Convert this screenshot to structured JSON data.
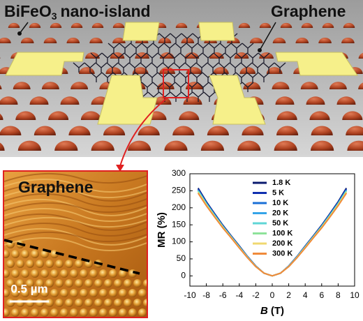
{
  "schematic": {
    "label_island": {
      "main": "BiFeO",
      "sub": "3",
      "rest": "nano-island"
    },
    "label_graphene": "Graphene"
  },
  "afm": {
    "label": "Graphene",
    "scale_bar": "0.5 µm"
  },
  "chart_data": {
    "type": "line",
    "y_label": "MR (%)",
    "x_label_symbol": "B",
    "x_label_unit": "(T)",
    "x": [
      -9,
      -8,
      -7,
      -6,
      -5,
      -4,
      -3,
      -2,
      -1,
      0,
      1,
      2,
      3,
      4,
      5,
      6,
      7,
      8,
      9
    ],
    "xlim": [
      -10,
      10
    ],
    "xticks": [
      -10,
      -8,
      -6,
      -4,
      -2,
      0,
      2,
      4,
      6,
      8,
      10
    ],
    "ylim": [
      -30,
      300
    ],
    "yticks": [
      0,
      50,
      100,
      150,
      200,
      250,
      300
    ],
    "series": [
      {
        "name": "1.8 K",
        "color": "#0a1a6e",
        "values": [
          258,
          218,
          183,
          149,
          118,
          88,
          57,
          29,
          8,
          0,
          8,
          29,
          57,
          88,
          118,
          149,
          183,
          218,
          258
        ]
      },
      {
        "name": "5 K",
        "color": "#1030b0",
        "values": [
          255,
          216,
          182,
          148,
          117,
          87,
          56,
          29,
          8,
          0,
          8,
          29,
          56,
          87,
          117,
          148,
          182,
          216,
          255
        ]
      },
      {
        "name": "10 K",
        "color": "#1a6fd6",
        "values": [
          253,
          214,
          180,
          146,
          116,
          86,
          56,
          28,
          8,
          0,
          8,
          28,
          56,
          86,
          116,
          146,
          180,
          214,
          253
        ]
      },
      {
        "name": "20 K",
        "color": "#35a4e8",
        "values": [
          250,
          212,
          178,
          145,
          115,
          85,
          55,
          28,
          8,
          0,
          8,
          28,
          55,
          85,
          115,
          145,
          178,
          212,
          250
        ]
      },
      {
        "name": "50 K",
        "color": "#5fd6d6",
        "values": [
          250,
          212,
          178,
          145,
          115,
          85,
          55,
          28,
          8,
          0,
          8,
          28,
          55,
          85,
          115,
          145,
          178,
          212,
          250
        ]
      },
      {
        "name": "100 K",
        "color": "#8ee39a",
        "values": [
          248,
          210,
          176,
          144,
          114,
          84,
          54,
          28,
          8,
          0,
          8,
          28,
          54,
          84,
          114,
          144,
          176,
          210,
          248
        ]
      },
      {
        "name": "200 K",
        "color": "#f0d870",
        "values": [
          245,
          208,
          174,
          142,
          113,
          83,
          54,
          27,
          8,
          0,
          8,
          27,
          54,
          83,
          113,
          142,
          174,
          208,
          245
        ]
      },
      {
        "name": "300 K",
        "color": "#f08a3a",
        "values": [
          243,
          206,
          173,
          141,
          112,
          82,
          53,
          27,
          8,
          0,
          8,
          27,
          53,
          82,
          112,
          141,
          173,
          206,
          243
        ]
      }
    ]
  }
}
